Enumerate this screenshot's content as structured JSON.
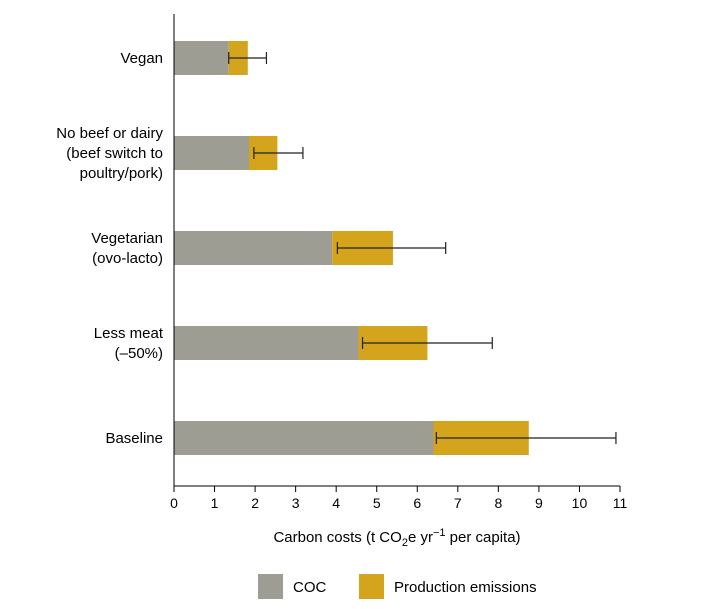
{
  "chart_data": {
    "type": "bar",
    "orientation": "horizontal",
    "stacked": true,
    "categories": [
      [
        "Vegan"
      ],
      [
        "No beef or dairy",
        "(beef switch to",
        "poultry/pork)"
      ],
      [
        "Vegetarian",
        "(ovo-lacto)"
      ],
      [
        "Less meat",
        "(–50%)"
      ],
      [
        "Baseline"
      ]
    ],
    "series": [
      {
        "name": "COC",
        "color": "#9d9d94",
        "values": [
          1.35,
          1.85,
          3.9,
          4.55,
          6.4
        ]
      },
      {
        "name": "Production emissions",
        "color": "#d3a41c",
        "values": [
          0.47,
          0.7,
          1.5,
          1.7,
          2.35
        ]
      }
    ],
    "error_bars": {
      "low": [
        1.35,
        1.97,
        4.03,
        4.65,
        6.47
      ],
      "high": [
        2.28,
        3.18,
        6.7,
        7.85,
        10.9
      ]
    },
    "xlim": [
      0,
      11
    ],
    "xticks": [
      "0",
      "1",
      "2",
      "3",
      "4",
      "5",
      "6",
      "7",
      "8",
      "9",
      "10",
      "11"
    ],
    "xlabel": {
      "prefix": "Carbon costs (t CO",
      "sub": "2",
      "mid": "e yr",
      "sup": "−1",
      "suffix": " per capita)"
    },
    "legend_position": "bottom"
  }
}
